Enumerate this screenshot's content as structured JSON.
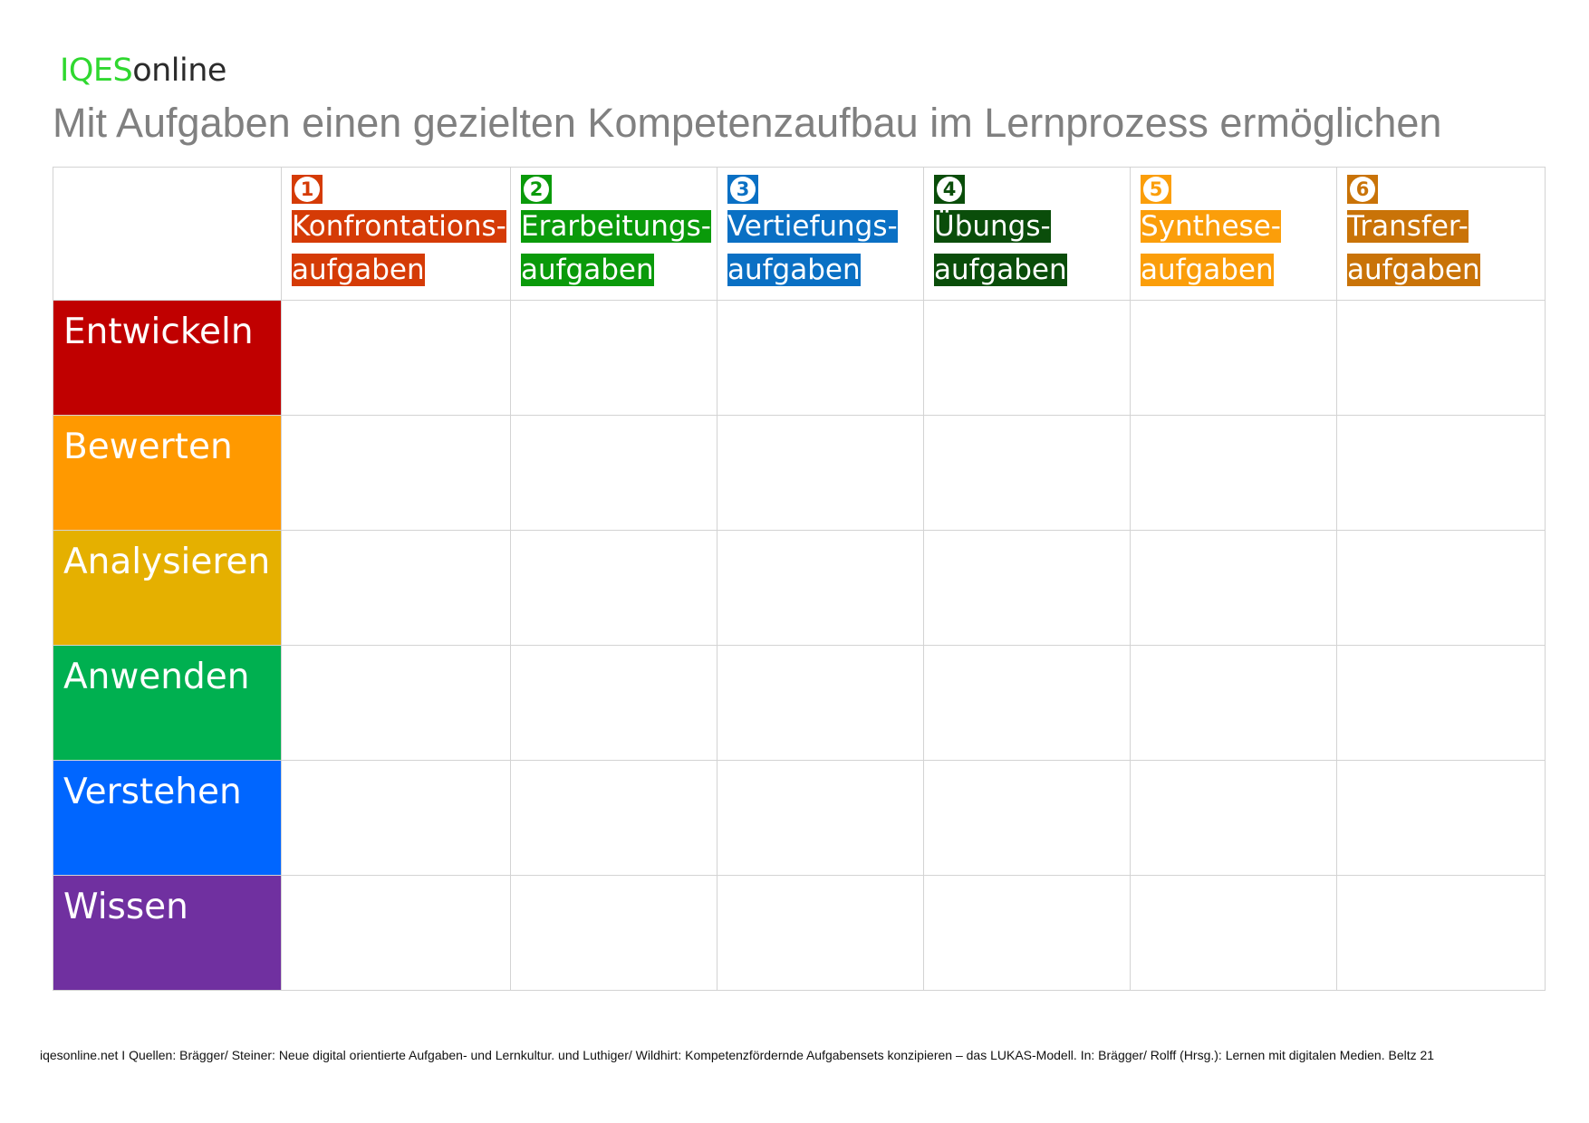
{
  "brand": {
    "part1": "IQES",
    "part2": "online"
  },
  "title": "Mit Aufgaben einen gezielten Kompetenzaufbau im Lernprozess ermöglichen",
  "columns": [
    {
      "number": "1",
      "line1": "Konfrontations-",
      "line2": "aufgaben",
      "color": "#d53b06"
    },
    {
      "number": "2",
      "line1": "Erarbeitungs-",
      "line2": "aufgaben",
      "color": "#0a9a0a"
    },
    {
      "number": "3",
      "line1": "Vertiefungs-",
      "line2": "aufgaben",
      "color": "#0a70c4"
    },
    {
      "number": "4",
      "line1": "Übungs-",
      "line2": "aufgaben",
      "color": "#0a4d0a"
    },
    {
      "number": "5",
      "line1": "Synthese-",
      "line2": "aufgaben",
      "color": "#fb9e0a"
    },
    {
      "number": "6",
      "line1": "Transfer-",
      "line2": "aufgaben",
      "color": "#c97308"
    }
  ],
  "rows": [
    {
      "label": "Entwickeln",
      "color": "#c00000"
    },
    {
      "label": "Bewerten",
      "color": "#ff9900"
    },
    {
      "label": "Analysieren",
      "color": "#e5b000"
    },
    {
      "label": "Anwenden",
      "color": "#00b050"
    },
    {
      "label": "Verstehen",
      "color": "#0066ff"
    },
    {
      "label": "Wissen",
      "color": "#7030a0"
    }
  ],
  "footer": "iqesonline.net   I  Quellen: Brägger/ Steiner: Neue digital orientierte Aufgaben- und Lernkultur. und Luthiger/ Wildhirt: Kompetenzfördernde Aufgabensets konzipieren – das LUKAS-Modell. In: Brägger/ Rolff (Hrsg.): Lernen mit digitalen Medien. Beltz 21"
}
